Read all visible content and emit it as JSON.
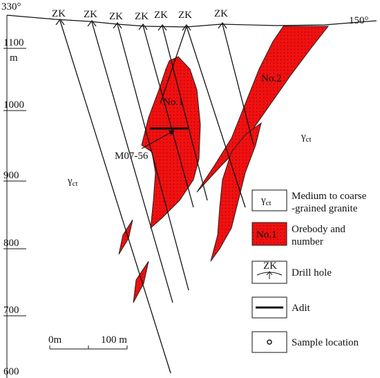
{
  "orientation": {
    "left": "330°",
    "right": "150°"
  },
  "drill_holes": [
    "ZK",
    "ZK",
    "ZK",
    "ZK",
    "ZK",
    "ZK",
    "ZK"
  ],
  "elevations": [
    "1100",
    "1000",
    "900",
    "800",
    "700",
    "600"
  ],
  "elevation_unit": "m",
  "orebodies": [
    {
      "label": "No.1"
    },
    {
      "label": "No.2"
    }
  ],
  "sample_label": "M07-56",
  "rock": {
    "symbol": "γ",
    "subscript": "ct"
  },
  "legend": {
    "granite": [
      "Medium to coarse",
      "-grained granite"
    ],
    "orebody": {
      "symbol": "No.1",
      "text": [
        "Orebody and",
        "number"
      ]
    },
    "drill_hole": {
      "symbol": "ZK",
      "text": "Drill hole"
    },
    "adit": "Adit",
    "sample": "Sample location"
  },
  "scale_bar": {
    "start": "0m",
    "end": "100 m"
  }
}
